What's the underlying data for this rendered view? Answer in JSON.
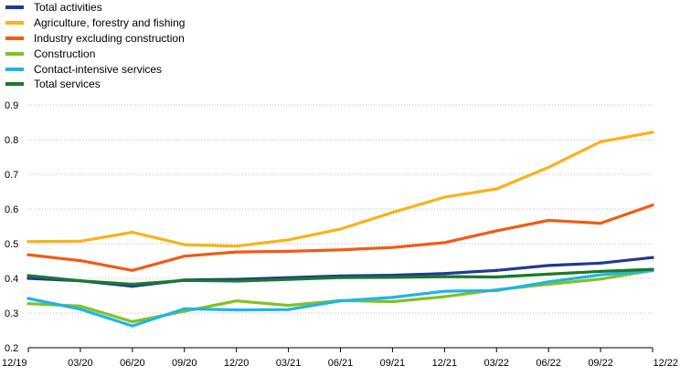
{
  "chart_data": {
    "type": "line",
    "categories": [
      "12/19",
      "03/20",
      "06/20",
      "09/20",
      "12/20",
      "03/21",
      "06/21",
      "09/21",
      "12/21",
      "03/22",
      "06/22",
      "09/22",
      "12/22"
    ],
    "ylim": [
      0.2,
      0.9
    ],
    "yticks": [
      "0.2",
      "0.3",
      "0.4",
      "0.5",
      "0.6",
      "0.7",
      "0.8",
      "0.9"
    ],
    "grid": true,
    "legend_position": "top-left",
    "series": [
      {
        "name": "Total activities",
        "color": "#1f3a93",
        "values": [
          0.4,
          0.393,
          0.377,
          0.395,
          0.397,
          0.402,
          0.407,
          0.409,
          0.414,
          0.423,
          0.437,
          0.444,
          0.46
        ]
      },
      {
        "name": "Agriculture, forestry and fishing",
        "color": "#f9b21b",
        "values": [
          0.506,
          0.507,
          0.533,
          0.497,
          0.493,
          0.511,
          0.542,
          0.59,
          0.634,
          0.658,
          0.72,
          0.794,
          0.821
        ]
      },
      {
        "name": "Industry excluding construction",
        "color": "#f25a14",
        "values": [
          0.468,
          0.451,
          0.423,
          0.464,
          0.476,
          0.478,
          0.482,
          0.489,
          0.503,
          0.537,
          0.567,
          0.559,
          0.611
        ]
      },
      {
        "name": "Construction",
        "color": "#82c21e",
        "values": [
          0.327,
          0.32,
          0.275,
          0.305,
          0.335,
          0.322,
          0.336,
          0.333,
          0.347,
          0.367,
          0.383,
          0.398,
          0.423
        ]
      },
      {
        "name": "Contact-intensive services",
        "color": "#1fb4ea",
        "values": [
          0.342,
          0.311,
          0.263,
          0.312,
          0.309,
          0.31,
          0.335,
          0.345,
          0.363,
          0.365,
          0.39,
          0.41,
          0.422
        ]
      },
      {
        "name": "Total services",
        "color": "#1a7a2c",
        "values": [
          0.408,
          0.393,
          0.383,
          0.394,
          0.392,
          0.397,
          0.402,
          0.403,
          0.405,
          0.404,
          0.412,
          0.42,
          0.426
        ]
      }
    ]
  }
}
